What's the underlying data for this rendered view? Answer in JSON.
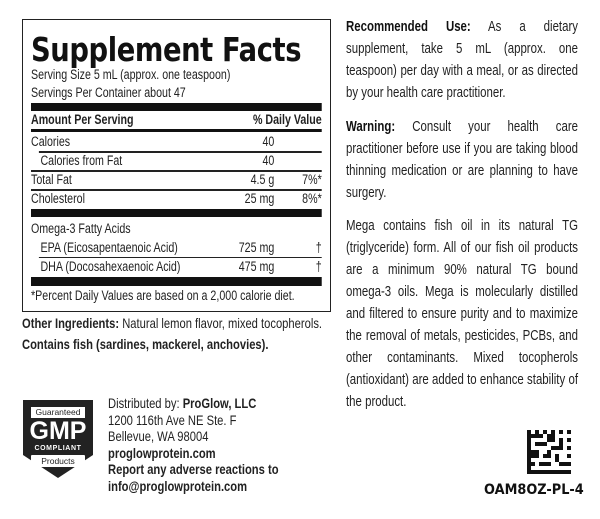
{
  "facts": {
    "title": "Supplement Facts",
    "serving_size": "Serving Size 5 mL (approx. one teaspoon)",
    "servings_per_container": "Servings Per Container about 47",
    "amount_header": "Amount Per Serving",
    "dv_header": "% Daily Value",
    "rows": [
      {
        "name": "Calories",
        "amount": "40",
        "dv": ""
      },
      {
        "name": "Calories from Fat",
        "amount": "40",
        "dv": ""
      },
      {
        "name": "Total Fat",
        "amount": "4.5 g",
        "dv": "7%*"
      },
      {
        "name": "Cholesterol",
        "amount": "25 mg",
        "dv": "8%*"
      },
      {
        "name": "Omega-3 Fatty Acids",
        "amount": "",
        "dv": ""
      },
      {
        "name": "EPA (Eicosapentaenoic Acid)",
        "amount": "725 mg",
        "dv": "†"
      },
      {
        "name": "DHA (Docosahexaenoic Acid)",
        "amount": "475 mg",
        "dv": "†"
      }
    ],
    "footnote": "*Percent Daily Values are based on a 2,000 calorie diet."
  },
  "other_ingredients": {
    "label": "Other Ingredients:",
    "text": " Natural lemon flavor, mixed tocopherols."
  },
  "allergen": "Contains fish (sardines, mackerel, anchovies).",
  "recommended": {
    "label": "Recommended Use:",
    "text": " As a dietary supplement, take 5 mL (approx. one teaspoon) per day with a meal, or as directed by your health care practitioner."
  },
  "warning": {
    "label": "Warning:",
    "text": " Consult your health care practitioner before use if you are taking blood thinning medication or are planning to have surgery."
  },
  "description": "Mega contains fish oil in its natural TG (triglyceride) form. All of our fish oil products are a minimum 90% natural TG bound omega-3 oils. Mega is molecularly distilled and filtered to ensure purity and to maximize the removal of metals, pesticides, PCBs, and other contaminants. Mixed tocopherols (antioxidant) are added to enhance stability of the product.",
  "gmp_badge": {
    "top": "Guaranteed",
    "main": "GMP",
    "sub": "COMPLIANT",
    "bottom": "Products"
  },
  "distributor": {
    "label": "Distributed by:",
    "company": " ProGlow, LLC",
    "address1": "1200 116th Ave NE Ste. F",
    "address2": "Bellevue, WA 98004",
    "website": "proglowprotein.com",
    "report": "Report any adverse reactions to",
    "email": "info@proglowprotein.com"
  },
  "product_code": "OAM8OZ-PL-4"
}
